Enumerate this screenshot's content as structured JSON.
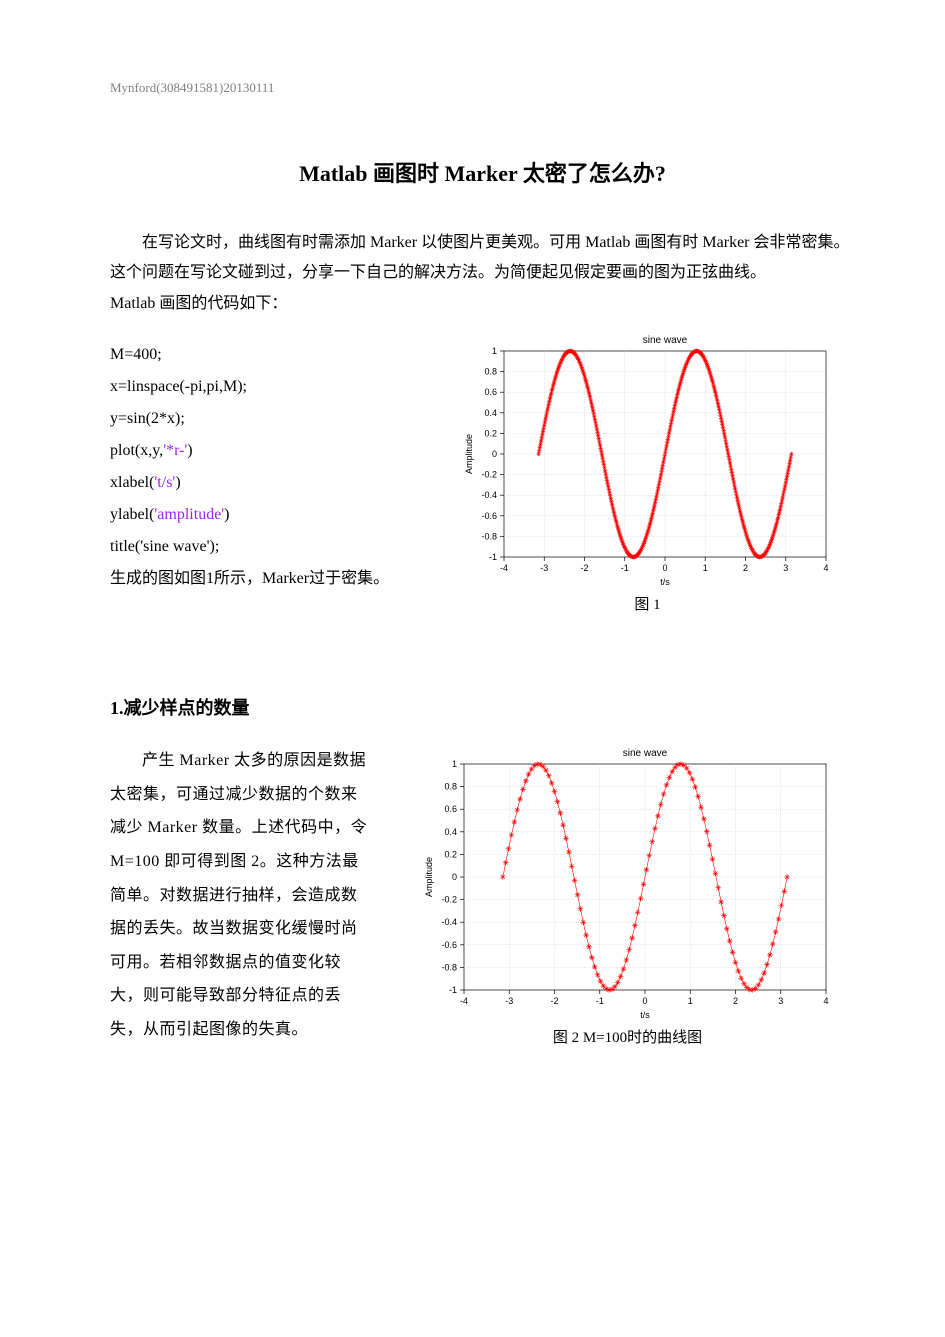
{
  "header": "Mynford(308491581)20130111",
  "title": "Matlab 画图时 Marker 太密了怎么办?",
  "intro_para": "在写论文时，曲线图有时需添加 Marker 以使图片更美观。可用 Matlab 画图有时 Marker 会非常密集。这个问题在写论文碰到过，分享一下自己的解决方法。为简便起见假定要画的图为正弦曲线。",
  "intro_trail": "Matlab 画图的代码如下：",
  "code": {
    "l1": "M=400;",
    "l2": "x=linspace(-pi,pi,M);",
    "l3": "y=sin(2*x);",
    "l4a": "plot(x,y,",
    "l4s": "'*r-'",
    "l4b": ")",
    "l5a": "xlabel(",
    "l5s": "'t/s'",
    "l5b": ")",
    "l6a": "ylabel(",
    "l6s": "'amplitude'",
    "l6b": ")",
    "l7": "title('sine wave');",
    "l8": "生成的图如图1所示，Marker过于密集。"
  },
  "section1_heading": "1.减少样点的数量",
  "section1_para": "产生 Marker 太多的原因是数据太密集，可通过减少数据的个数来减少 Marker 数量。上述代码中，令 M=100 即可得到图 2。这种方法最简单。对数据进行抽样，会造成数据的丢失。故当数据变化缓慢时尚可用。若相邻数据点的值变化较大，则可能导致部分特征点的丢失，从而引起图像的失真。",
  "chart1": {
    "type": "line",
    "title": "sine wave",
    "xlabel": "t/s",
    "ylabel": "Amplitude",
    "xlim": [
      -4,
      4
    ],
    "ylim": [
      -1,
      1
    ],
    "xtick_step": 1,
    "ytick_step": 0.2,
    "xticks": [
      "-4",
      "-3",
      "-2",
      "-1",
      "0",
      "1",
      "2",
      "3",
      "4"
    ],
    "yticks": [
      "-1",
      "-0.8",
      "-0.6",
      "-0.4",
      "-0.2",
      "0",
      "0.2",
      "0.4",
      "0.6",
      "0.8",
      "1"
    ],
    "line_color": "#ff0000",
    "marker_color": "#ff0000",
    "marker": "*",
    "n_points": 400,
    "x_start": -3.14159,
    "x_end": 3.14159,
    "freq": 2,
    "marker_size": 2.2,
    "line_width": 0.6,
    "background_color": "#ffffff",
    "grid_on": true,
    "caption": "图 1"
  },
  "chart2": {
    "type": "line",
    "title": "sine wave",
    "xlabel": "t/s",
    "ylabel": "Amplitude",
    "xlim": [
      -4,
      4
    ],
    "ylim": [
      -1,
      1
    ],
    "xtick_step": 1,
    "ytick_step": 0.2,
    "xticks": [
      "-4",
      "-3",
      "-2",
      "-1",
      "0",
      "1",
      "2",
      "3",
      "4"
    ],
    "yticks": [
      "-1",
      "-0.8",
      "-0.6",
      "-0.4",
      "-0.2",
      "0",
      "0.2",
      "0.4",
      "0.6",
      "0.8",
      "1"
    ],
    "line_color": "#ff0000",
    "marker_color": "#ff0000",
    "marker": "*",
    "n_points": 100,
    "x_start": -3.14159,
    "x_end": 3.14159,
    "freq": 2,
    "marker_size": 2.8,
    "line_width": 0.6,
    "background_color": "#ffffff",
    "grid_on": true,
    "caption": "图 2 M=100时的曲线图"
  }
}
